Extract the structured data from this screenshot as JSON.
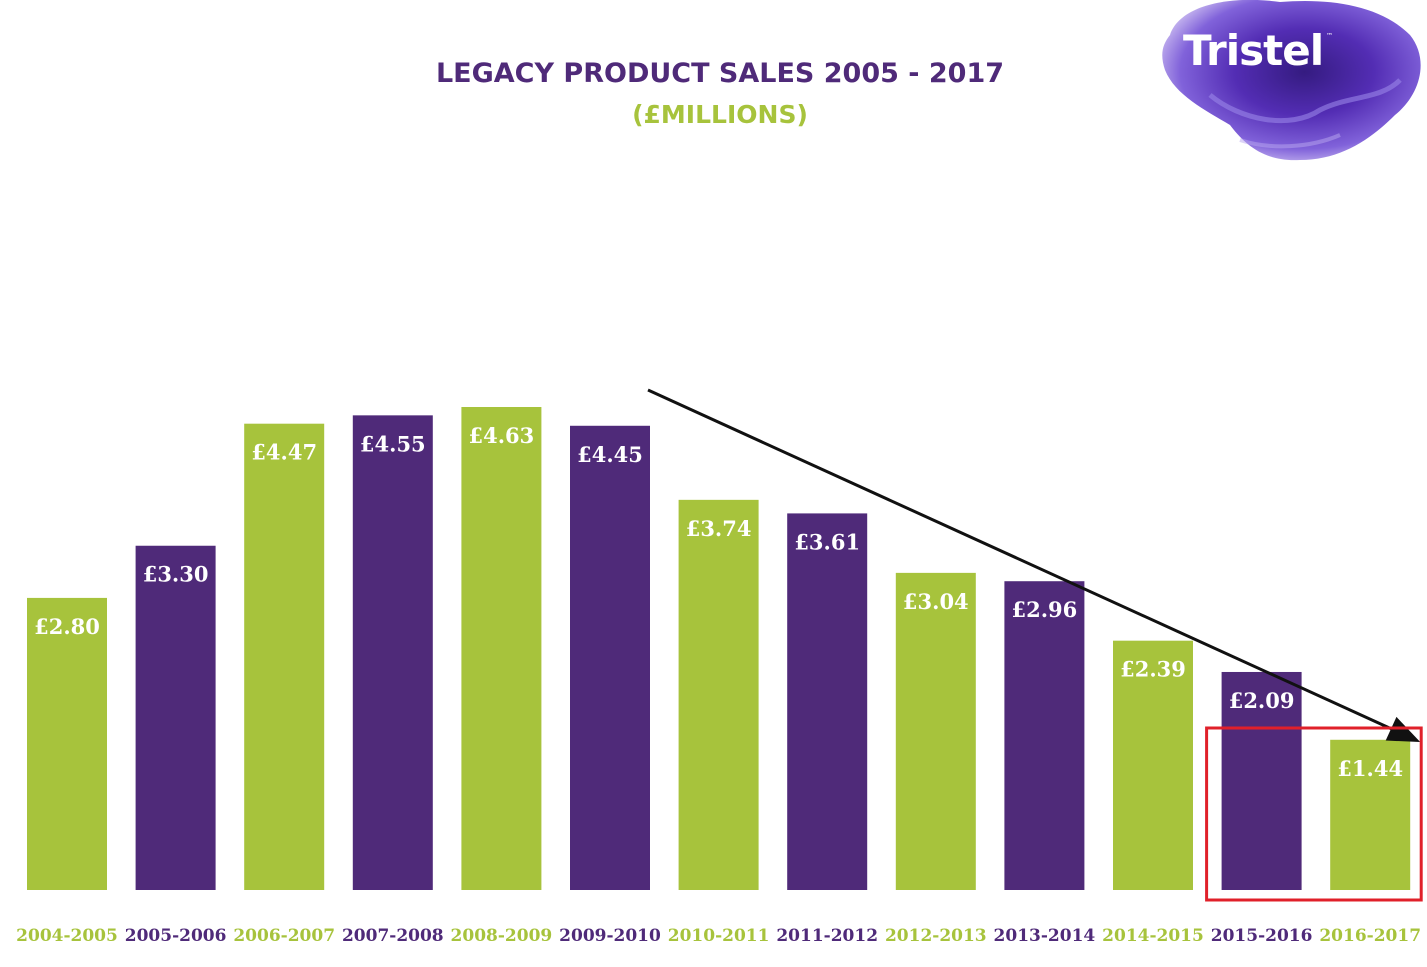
{
  "page": {
    "title": "LEGACY PRODUCT SALES 2005 - 2017",
    "subtitle": "(£MILLIONS)"
  },
  "logo": {
    "text": "Tristel",
    "tm": "™"
  },
  "colors": {
    "green": "#a7c33c",
    "purple": "#4f2a79",
    "highlight": "#e0202a",
    "arrow": "#111111"
  },
  "chart_data": {
    "type": "bar",
    "title": "LEGACY PRODUCT SALES 2005 - 2017",
    "subtitle": "(£MILLIONS)",
    "categories": [
      "2004-2005",
      "2005-2006",
      "2006-2007",
      "2007-2008",
      "2008-2009",
      "2009-2010",
      "2010-2011",
      "2011-2012",
      "2012-2013",
      "2013-2014",
      "2014-2015",
      "2015-2016",
      "2016-2017"
    ],
    "values": [
      2.8,
      3.3,
      4.47,
      4.55,
      4.63,
      4.45,
      3.74,
      3.61,
      3.04,
      2.96,
      2.39,
      2.09,
      1.44
    ],
    "data_labels": [
      "£2.80",
      "£3.30",
      "£4.47",
      "£4.55",
      "£4.63",
      "£4.45",
      "£3.74",
      "£3.61",
      "£3.04",
      "£2.96",
      "£2.39",
      "£2.09",
      "£1.44"
    ],
    "bar_colors": [
      "green",
      "purple",
      "green",
      "purple",
      "green",
      "purple",
      "green",
      "purple",
      "green",
      "purple",
      "green",
      "purple",
      "green"
    ],
    "ylim": [
      0,
      4.63
    ],
    "grid": false,
    "legend": "none",
    "annotations": [
      {
        "type": "trend-arrow",
        "from_category": "2009-2010",
        "to_category": "2016-2017",
        "direction": "down"
      },
      {
        "type": "highlight-box",
        "categories": [
          "2015-2016",
          "2016-2017"
        ],
        "color": "red"
      }
    ]
  }
}
